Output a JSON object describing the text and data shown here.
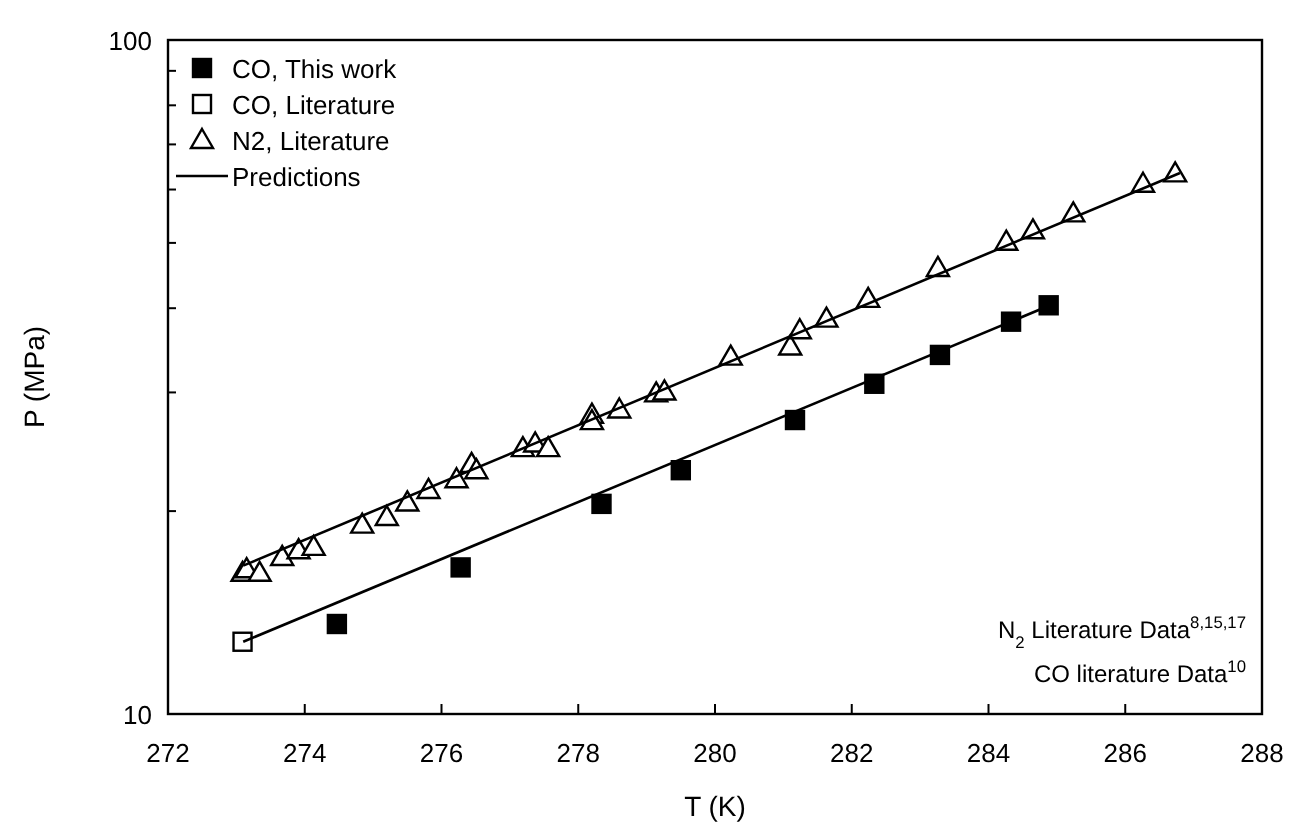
{
  "chart_data": {
    "type": "scatter",
    "xlabel": "T (K)",
    "ylabel": "P (MPa)",
    "log": "y",
    "xlim": [
      272,
      288
    ],
    "xticks": [
      272,
      274,
      276,
      278,
      280,
      282,
      284,
      286,
      288
    ],
    "ylim": [
      10,
      100
    ],
    "yticks": [
      10,
      {
        "value": 20,
        "label": null
      },
      {
        "value": 30,
        "label": null
      },
      {
        "value": 40,
        "label": null
      },
      {
        "value": 50,
        "label": null
      },
      {
        "value": 60,
        "label": null
      },
      {
        "value": 70,
        "label": null
      },
      {
        "value": 80,
        "label": null
      },
      {
        "value": 90,
        "label": null
      },
      100
    ],
    "legend": "top left",
    "grid": false,
    "series": [
      {
        "name": "CO, This work",
        "color": "#000000",
        "marker": "square",
        "x": [
          274.47,
          276.28,
          278.34,
          279.5,
          281.17,
          282.33,
          283.29,
          284.33,
          284.88
        ],
        "values": [
          13.6,
          16.5,
          20.5,
          23.0,
          27.3,
          30.9,
          34.1,
          38.2,
          40.4
        ]
      },
      {
        "name": "CO, Literature",
        "color": "#ffffff",
        "marker": "square",
        "x": [
          273.09
        ],
        "values": [
          12.8
        ]
      },
      {
        "name": "N2, Literature",
        "color": "#ffffff",
        "marker": "triangle",
        "x": [
          273.09,
          273.15,
          273.34,
          273.67,
          273.91,
          274.13,
          274.84,
          275.2,
          275.5,
          275.81,
          276.22,
          276.44,
          276.51,
          277.19,
          277.37,
          277.56,
          278.2,
          278.2,
          278.6,
          279.14,
          279.26,
          280.23,
          281.1,
          281.24,
          281.63,
          282.24,
          283.26,
          284.26,
          284.65,
          285.24,
          286.26,
          286.73
        ],
        "values": [
          16.2,
          16.4,
          16.2,
          17.1,
          17.5,
          17.7,
          19.1,
          19.6,
          20.6,
          21.5,
          22.3,
          23.5,
          23.0,
          24.8,
          25.2,
          24.8,
          27.8,
          27.2,
          28.3,
          29.9,
          30.1,
          33.9,
          35.1,
          37.1,
          38.6,
          41.3,
          45.9,
          50.2,
          52.2,
          55.3,
          61.2,
          63.4
        ]
      },
      {
        "name": "Predictions",
        "type": "line",
        "color": "#000000",
        "marker": "none",
        "line_style": "solid",
        "x": [
          273.1,
          286.8
        ],
        "values": [
          16.6,
          63.5
        ]
      },
      {
        "type": "line",
        "color": "#000000",
        "marker": "none",
        "line_style": "solid",
        "x": [
          273.1,
          284.9
        ],
        "values": [
          12.8,
          40.4
        ]
      }
    ],
    "annotations": [
      "N$_{2}$ Literature Data$^{8,15,17}$",
      "CO literature Data$^{10}$"
    ]
  }
}
